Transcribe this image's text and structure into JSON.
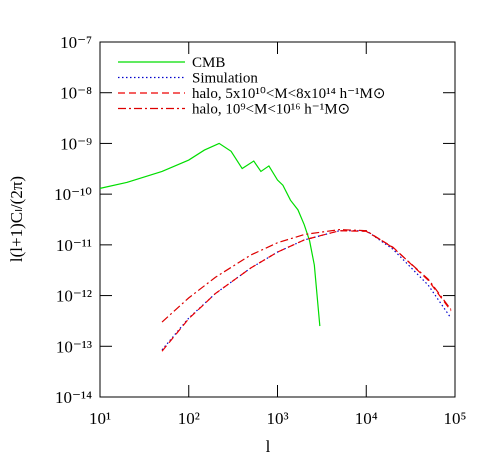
{
  "chart_data": {
    "type": "line",
    "x_label": "l",
    "y_label": "l(l+1)Cₗ/(2π)",
    "xscale": "log",
    "yscale": "log",
    "xlim": [
      10,
      100000
    ],
    "ylim": [
      1e-14,
      1e-07
    ],
    "xticks": [
      {
        "value": 10,
        "label": "10¹"
      },
      {
        "value": 100,
        "label": "10²"
      },
      {
        "value": 1000,
        "label": "10³"
      },
      {
        "value": 10000,
        "label": "10⁴"
      },
      {
        "value": 100000,
        "label": "10⁵"
      }
    ],
    "yticks": [
      {
        "value": 1e-14,
        "label": "10⁻¹⁴"
      },
      {
        "value": 1e-13,
        "label": "10⁻¹³"
      },
      {
        "value": 1e-12,
        "label": "10⁻¹²"
      },
      {
        "value": 1e-11,
        "label": "10⁻¹¹"
      },
      {
        "value": 1e-10,
        "label": "10⁻¹⁰"
      },
      {
        "value": 1e-09,
        "label": "10⁻⁹"
      },
      {
        "value": 1e-08,
        "label": "10⁻⁸"
      },
      {
        "value": 1e-07,
        "label": "10⁻⁷"
      }
    ],
    "legend": "upper left",
    "series": [
      {
        "name": "CMB",
        "color": "#00dd00",
        "linestyle": "solid",
        "x": [
          10,
          20,
          50,
          100,
          150,
          220,
          300,
          400,
          540,
          650,
          800,
          1000,
          1150,
          1400,
          1700,
          2000,
          2300,
          2600,
          3000
        ],
        "values": [
          1.3e-10,
          1.7e-10,
          2.8e-10,
          4.7e-10,
          7.4e-10,
          1e-09,
          7e-10,
          3.2e-10,
          4.5e-10,
          2.8e-10,
          3.6e-10,
          1.9e-10,
          1.5e-10,
          7.6e-11,
          4.9e-11,
          2.5e-11,
          1.2e-11,
          4e-12,
          2.5e-13
        ]
      },
      {
        "name": "Simulation",
        "color": "#0000cc",
        "linestyle": "dotted",
        "x": [
          50,
          100,
          200,
          500,
          1000,
          2000,
          5000,
          10000,
          20000,
          50000,
          90000
        ],
        "values": [
          8.5e-14,
          3.6e-13,
          1.1e-12,
          3.5e-12,
          7.2e-12,
          1.25e-11,
          1.9e-11,
          1.9e-11,
          8.2e-12,
          1.6e-12,
          3.6e-13
        ]
      },
      {
        "name": "halo,  5x10¹⁰<M<8x10¹⁴ h⁻¹M⊙",
        "color": "#ee0000",
        "linestyle": "dashed",
        "x": [
          50,
          100,
          200,
          500,
          1000,
          2000,
          5000,
          10000,
          20000,
          50000,
          90000
        ],
        "values": [
          8e-14,
          3.5e-13,
          1.1e-12,
          3.5e-12,
          7.2e-12,
          1.25e-11,
          1.9e-11,
          1.85e-11,
          9e-12,
          2e-12,
          5e-13
        ]
      },
      {
        "name": "halo,  10⁹<M<10¹⁶ h⁻¹M⊙",
        "color": "#dd0000",
        "linestyle": "dashdot",
        "x": [
          50,
          100,
          200,
          500,
          1000,
          2000,
          5000,
          10000,
          20000,
          50000,
          90000
        ],
        "values": [
          3e-13,
          9e-13,
          2.3e-12,
          6.3e-12,
          1.1e-11,
          1.6e-11,
          2e-11,
          1.9e-11,
          8.8e-12,
          2.1e-12,
          5.3e-13
        ]
      }
    ]
  }
}
